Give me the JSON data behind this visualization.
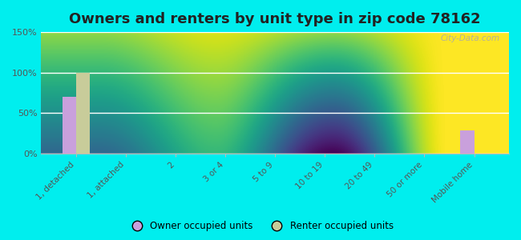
{
  "title": "Owners and renters by unit type in zip code 78162",
  "categories": [
    "1, detached",
    "1, attached",
    "2",
    "3 or 4",
    "5 to 9",
    "10 to 19",
    "20 to 49",
    "50 or more",
    "Mobile home"
  ],
  "owner_values": [
    70,
    0,
    0,
    0,
    0,
    0,
    0,
    0,
    28
  ],
  "renter_values": [
    100,
    0,
    0,
    0,
    0,
    0,
    0,
    0,
    0
  ],
  "owner_color": "#c9a0dc",
  "renter_color": "#c8cc9a",
  "background_outer": "#00eeee",
  "ylim": [
    0,
    150
  ],
  "yticks": [
    0,
    50,
    100,
    150
  ],
  "ytick_labels": [
    "0%",
    "50%",
    "100%",
    "150%"
  ],
  "bar_width": 0.28,
  "legend_owner": "Owner occupied units",
  "legend_renter": "Renter occupied units",
  "title_fontsize": 13,
  "watermark": "City-Data.com"
}
